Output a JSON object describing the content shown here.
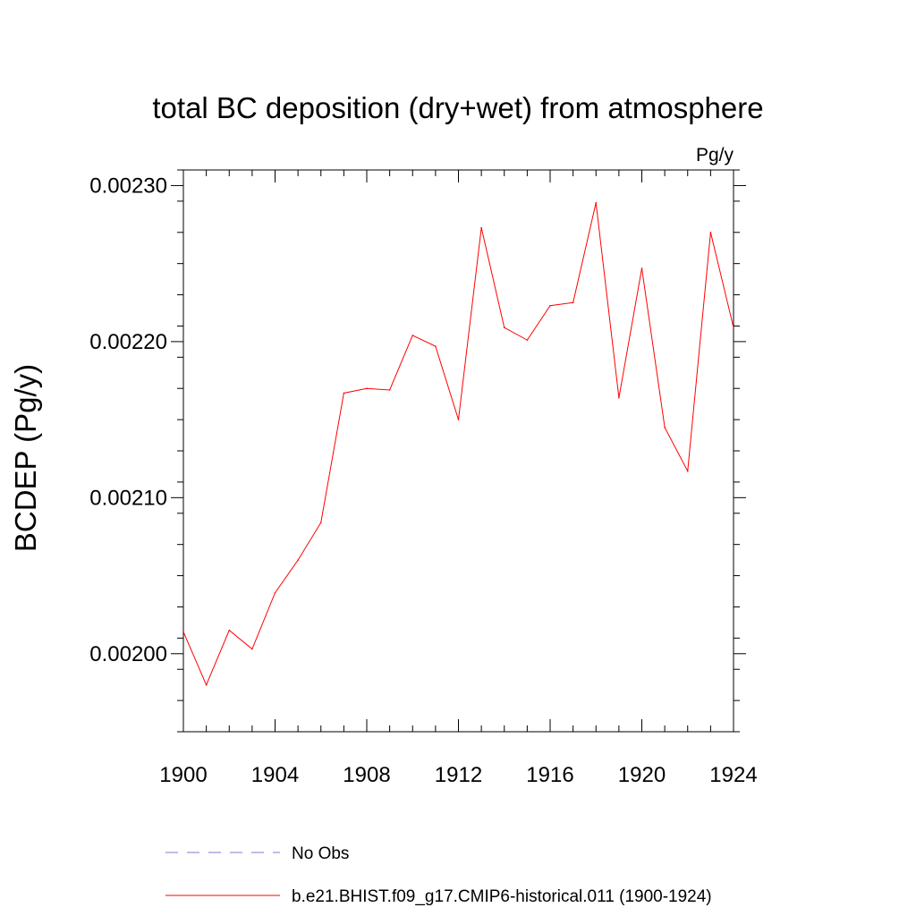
{
  "chart_data": {
    "type": "line",
    "title": "total BC deposition (dry+wet) from atmosphere",
    "units_label": "Pg/y",
    "ylabel": "BCDEP  (Pg/y)",
    "xlabel": "",
    "xlim": [
      1900,
      1924
    ],
    "ylim": [
      0.00195,
      0.00231
    ],
    "x_ticks": [
      1900,
      1904,
      1908,
      1912,
      1916,
      1920,
      1924
    ],
    "x_tick_labels": [
      "1900",
      "1904",
      "1908",
      "1912",
      "1916",
      "1920",
      "1924"
    ],
    "y_ticks": [
      0.002,
      0.0021,
      0.0022,
      0.0023
    ],
    "y_tick_labels": [
      "0.00200",
      "0.00210",
      "0.00220",
      "0.00230"
    ],
    "grid": false,
    "legend_position": "bottom",
    "series": [
      {
        "name": "No Obs",
        "style": "dashed",
        "color": "#7b7bd6",
        "x": [],
        "values": []
      },
      {
        "name": "b.e21.BHIST.f09_g17.CMIP6-historical.011 (1900-1924)",
        "style": "solid",
        "color": "#ff0000",
        "x": [
          1900,
          1901,
          1902,
          1903,
          1904,
          1905,
          1906,
          1907,
          1908,
          1909,
          1910,
          1911,
          1912,
          1913,
          1914,
          1915,
          1916,
          1917,
          1918,
          1919,
          1920,
          1921,
          1922,
          1923,
          1924
        ],
        "values": [
          0.002014,
          0.00198,
          0.002015,
          0.002003,
          0.002039,
          0.00206,
          0.002084,
          0.002167,
          0.00217,
          0.002169,
          0.002204,
          0.002197,
          0.00215,
          0.002273,
          0.002209,
          0.002201,
          0.002223,
          0.002225,
          0.002289,
          0.002164,
          0.002247,
          0.002145,
          0.002117,
          0.00227,
          0.002209
        ]
      }
    ]
  }
}
